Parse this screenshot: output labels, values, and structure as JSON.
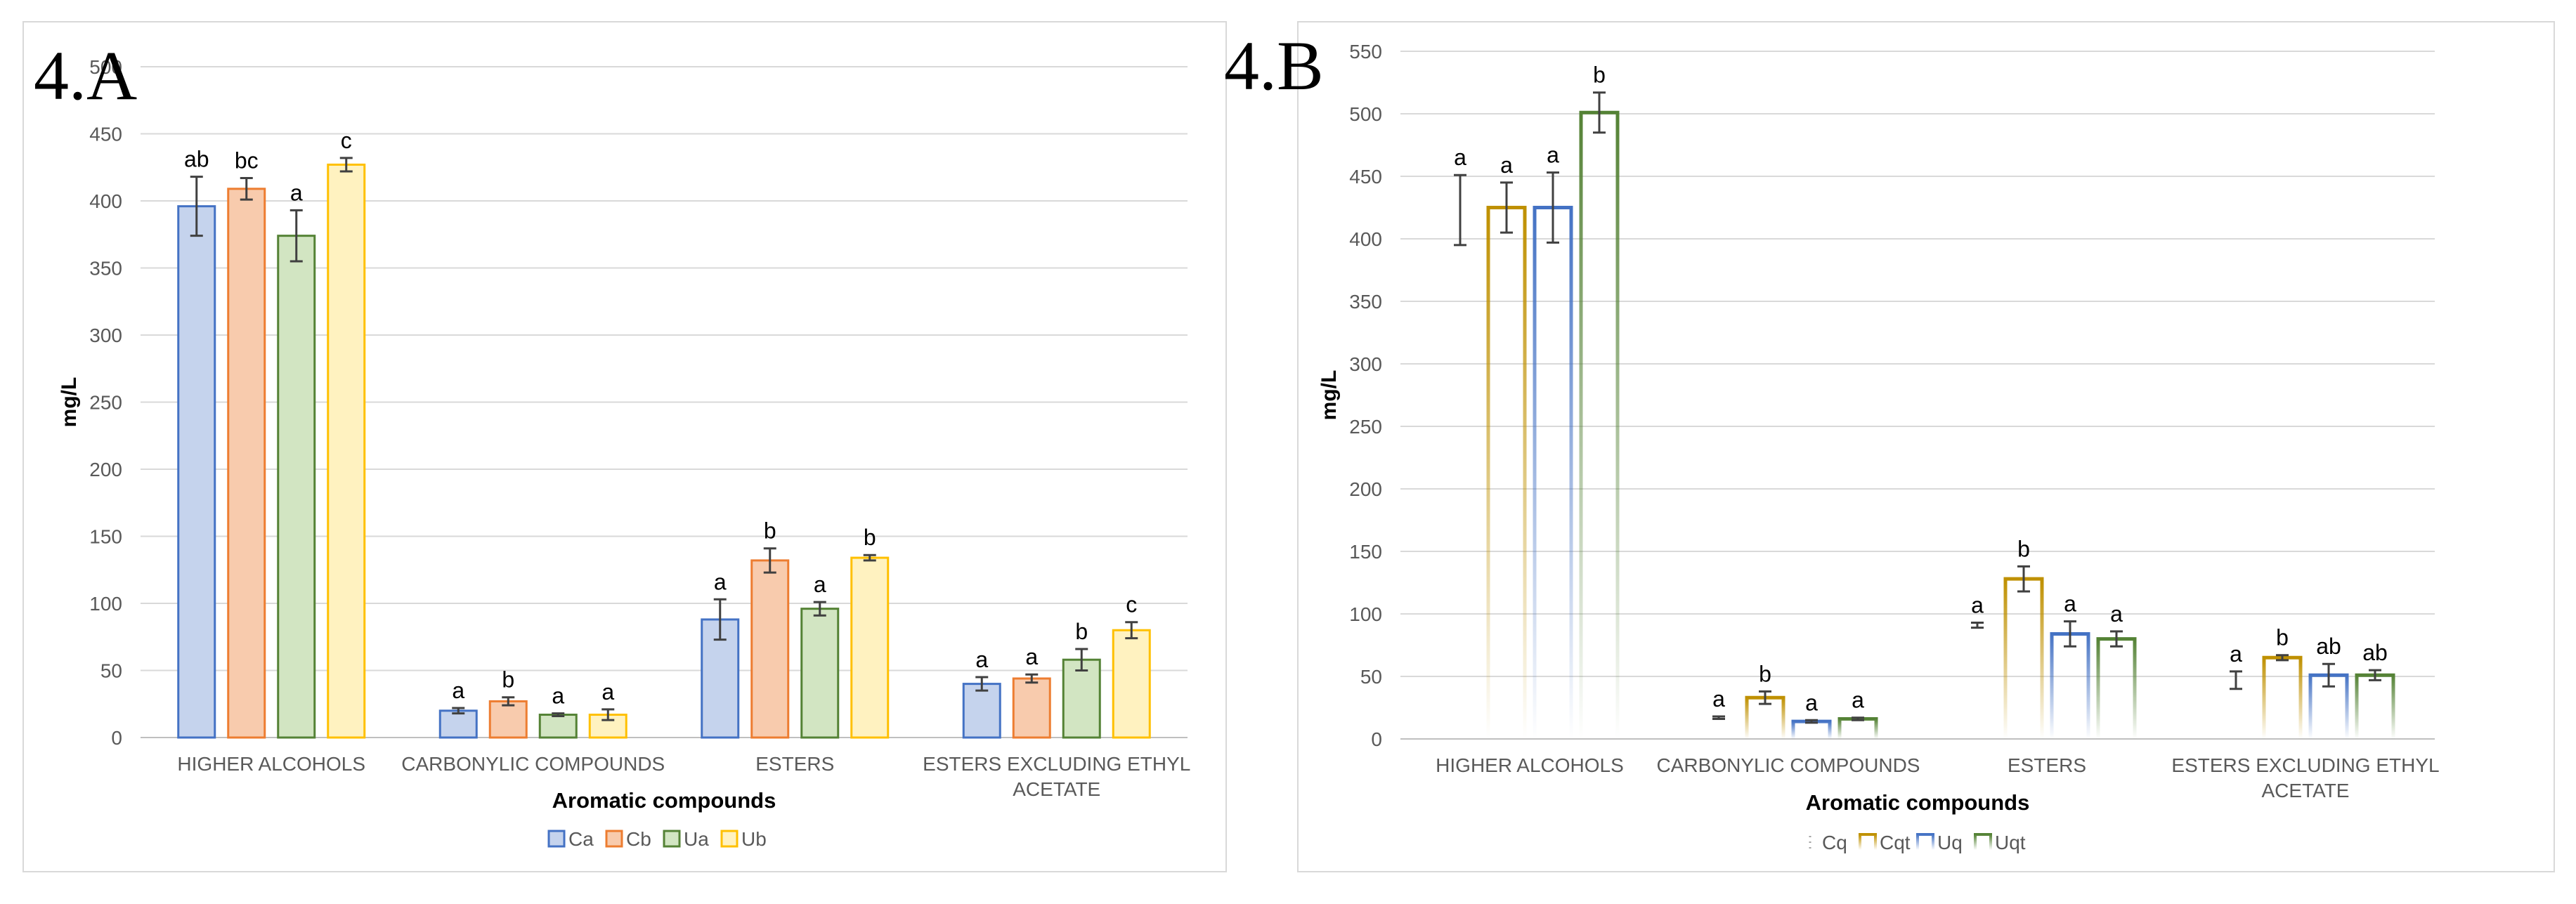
{
  "panels": [
    {
      "tag": "4.A"
    },
    {
      "tag": "4.B"
    }
  ],
  "chart_data": [
    {
      "type": "bar",
      "title": "",
      "xlabel": "Aromatic compounds",
      "ylabel": "mg/L",
      "ylim": [
        0,
        500
      ],
      "yticks": [
        0,
        50,
        100,
        150,
        200,
        250,
        300,
        350,
        400,
        450,
        500
      ],
      "ytick_labels": [
        "0",
        "50",
        "100",
        "150",
        "200",
        "250",
        "300",
        "350",
        "400",
        "450",
        "500"
      ],
      "grid": true,
      "legend_position": "bottom",
      "categories": [
        "HIGHER ALCOHOLS",
        "CARBONYLIC COMPOUNDS",
        "ESTERS",
        "ESTERS EXCLUDING ETHYL ACETATE"
      ],
      "series": [
        {
          "name": "Ca",
          "values": [
            396,
            20,
            88,
            40
          ],
          "errors": [
            22,
            2,
            15,
            5
          ],
          "labels": [
            "ab",
            "a",
            "a",
            "a"
          ],
          "fill": "#c5d3ed",
          "stroke": "#4472c4"
        },
        {
          "name": "Cb",
          "values": [
            409,
            27,
            132,
            44
          ],
          "errors": [
            8,
            3,
            9,
            3
          ],
          "labels": [
            "bc",
            "b",
            "b",
            "a"
          ],
          "fill": "#f8cbad",
          "stroke": "#ed7d31"
        },
        {
          "name": "Ua",
          "values": [
            374,
            17,
            96,
            58
          ],
          "errors": [
            19,
            1,
            5,
            8
          ],
          "labels": [
            "a",
            "a",
            "a",
            "b"
          ],
          "fill": "#d2e5c2",
          "stroke": "#548235"
        },
        {
          "name": "Ub",
          "values": [
            427,
            17,
            134,
            80
          ],
          "errors": [
            5,
            4,
            2,
            6
          ],
          "labels": [
            "c",
            "a",
            "b",
            "c"
          ],
          "fill": "#fff2c0",
          "stroke": "#ffc000"
        }
      ]
    },
    {
      "type": "bar",
      "title": "",
      "xlabel": "Aromatic compounds",
      "ylabel": "mg/L",
      "ylim": [
        0,
        550
      ],
      "yticks": [
        0,
        50,
        100,
        150,
        200,
        250,
        300,
        350,
        400,
        450,
        500,
        550
      ],
      "ytick_labels": [
        "0",
        "50",
        "100",
        "150",
        "200",
        "250",
        "300",
        "350",
        "400",
        "450",
        "500",
        "550"
      ],
      "grid": true,
      "legend_position": "bottom",
      "categories": [
        "HIGHER ALCOHOLS",
        "CARBONYLIC COMPOUNDS",
        "ESTERS",
        "ESTERS EXCLUDING ETHYL ACETATE"
      ],
      "series": [
        {
          "name": "Cq",
          "values": [
            423,
            17,
            91,
            47
          ],
          "errors": [
            28,
            1,
            2,
            7
          ],
          "labels": [
            "a",
            "a",
            "a",
            "a"
          ],
          "fill": "none",
          "stroke": "#a5a5a5",
          "style": "dotted"
        },
        {
          "name": "Cqt",
          "values": [
            425,
            33,
            128,
            65
          ],
          "errors": [
            20,
            5,
            10,
            2
          ],
          "labels": [
            "a",
            "b",
            "b",
            "b"
          ],
          "fill": "none",
          "stroke": "#bf9000",
          "style": "outline"
        },
        {
          "name": "Uq",
          "values": [
            425,
            14,
            84,
            51
          ],
          "errors": [
            28,
            1,
            10,
            9
          ],
          "labels": [
            "a",
            "a",
            "a",
            "ab"
          ],
          "fill": "none",
          "stroke": "#4472c4",
          "style": "outline"
        },
        {
          "name": "Uqt",
          "values": [
            501,
            16,
            80,
            51
          ],
          "errors": [
            16,
            1,
            6,
            4
          ],
          "labels": [
            "b",
            "a",
            "a",
            "ab"
          ],
          "fill": "none",
          "stroke": "#548235",
          "style": "outline"
        }
      ]
    }
  ]
}
